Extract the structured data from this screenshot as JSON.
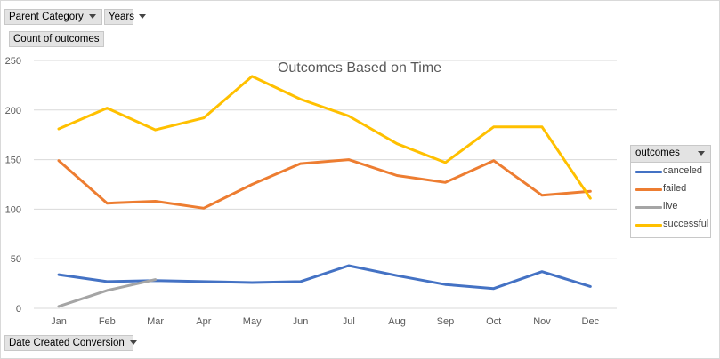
{
  "filters": {
    "parent_category": "Parent Category",
    "years": "Years"
  },
  "value_field": "Count of outcomes",
  "axis_field": "Date Created Conversion",
  "legend": {
    "title": "outcomes"
  },
  "colors": {
    "canceled": "#4472c4",
    "failed": "#ed7d31",
    "live": "#a5a5a5",
    "successful": "#ffc000"
  },
  "chart_data": {
    "type": "line",
    "title": "Outcomes Based on Time",
    "categories": [
      "Jan",
      "Feb",
      "Mar",
      "Apr",
      "May",
      "Jun",
      "Jul",
      "Aug",
      "Sep",
      "Oct",
      "Nov",
      "Dec"
    ],
    "ylim": [
      0,
      250
    ],
    "yticks": [
      0,
      50,
      100,
      150,
      200,
      250
    ],
    "grid": true,
    "legend_position": "right",
    "series": [
      {
        "name": "canceled",
        "values": [
          34,
          27,
          28,
          27,
          26,
          27,
          43,
          33,
          24,
          20,
          37,
          22
        ]
      },
      {
        "name": "failed",
        "values": [
          149,
          106,
          108,
          101,
          125,
          146,
          150,
          134,
          127,
          149,
          114,
          118
        ]
      },
      {
        "name": "live",
        "values": [
          2,
          18,
          29,
          null,
          null,
          null,
          null,
          null,
          null,
          null,
          null,
          null
        ]
      },
      {
        "name": "successful",
        "values": [
          181,
          202,
          180,
          192,
          234,
          211,
          194,
          166,
          147,
          183,
          183,
          111
        ]
      }
    ]
  }
}
